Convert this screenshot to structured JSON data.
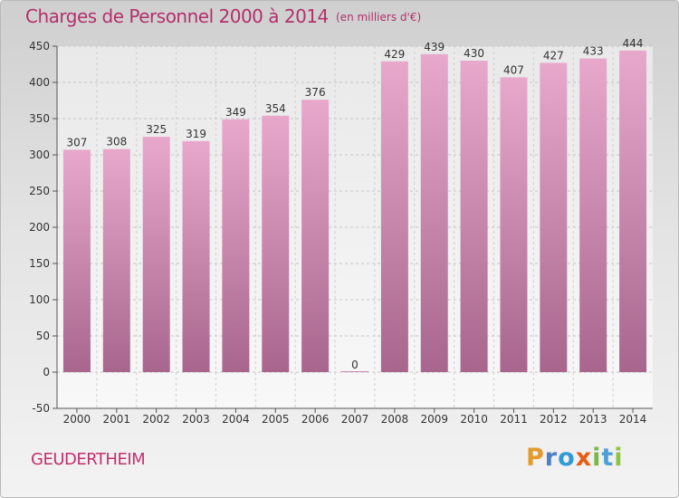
{
  "header": {
    "title": "Charges de Personnel 2000 à 2014",
    "subtitle": "(en milliers d'€)"
  },
  "footer": {
    "town": "GEUDERTHEIM",
    "logo_letters": [
      "P",
      "r",
      "o",
      "x",
      "i",
      "t",
      "i"
    ]
  },
  "chart_data": {
    "type": "bar",
    "categories": [
      "2000",
      "2001",
      "2002",
      "2003",
      "2004",
      "2005",
      "2006",
      "2007",
      "2008",
      "2009",
      "2010",
      "2011",
      "2012",
      "2013",
      "2014"
    ],
    "values": [
      307,
      308,
      325,
      319,
      349,
      354,
      376,
      0,
      429,
      439,
      430,
      407,
      427,
      433,
      444
    ],
    "ylim": [
      -50,
      450
    ],
    "yticks": [
      -50,
      0,
      50,
      100,
      150,
      200,
      250,
      300,
      350,
      400,
      450
    ],
    "grid": "horizontal dashed",
    "legend": "none",
    "colors": {
      "bar_top": "#e8a8cc",
      "bar_bottom": "#a8668e",
      "title": "#b3306a"
    }
  }
}
